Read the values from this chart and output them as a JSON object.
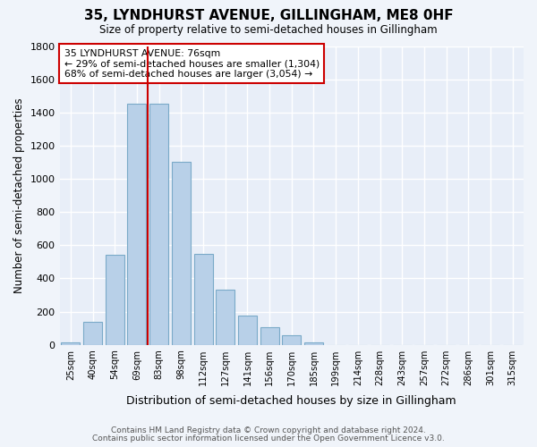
{
  "title": "35, LYNDHURST AVENUE, GILLINGHAM, ME8 0HF",
  "subtitle": "Size of property relative to semi-detached houses in Gillingham",
  "xlabel": "Distribution of semi-detached houses by size in Gillingham",
  "ylabel": "Number of semi-detached properties",
  "categories": [
    "25sqm",
    "40sqm",
    "54sqm",
    "69sqm",
    "83sqm",
    "98sqm",
    "112sqm",
    "127sqm",
    "141sqm",
    "156sqm",
    "170sqm",
    "185sqm",
    "199sqm",
    "214sqm",
    "228sqm",
    "243sqm",
    "257sqm",
    "272sqm",
    "286sqm",
    "301sqm",
    "315sqm"
  ],
  "values": [
    15,
    140,
    540,
    1450,
    1450,
    1100,
    545,
    330,
    175,
    105,
    55,
    15,
    0,
    0,
    0,
    0,
    0,
    0,
    0,
    0,
    0
  ],
  "bar_color": "#b8d0e8",
  "bar_edge_color": "#7aaac8",
  "property_line_color": "#cc0000",
  "annotation_title": "35 LYNDHURST AVENUE: 76sqm",
  "annotation_line1": "← 29% of semi-detached houses are smaller (1,304)",
  "annotation_line2": "68% of semi-detached houses are larger (3,054) →",
  "annotation_box_color": "#cc0000",
  "ylim": [
    0,
    1800
  ],
  "yticks": [
    0,
    200,
    400,
    600,
    800,
    1000,
    1200,
    1400,
    1600,
    1800
  ],
  "footer1": "Contains HM Land Registry data © Crown copyright and database right 2024.",
  "footer2": "Contains public sector information licensed under the Open Government Licence v3.0.",
  "bg_color": "#f0f4fa",
  "plot_bg_color": "#e8eef8",
  "grid_color": "#ffffff"
}
